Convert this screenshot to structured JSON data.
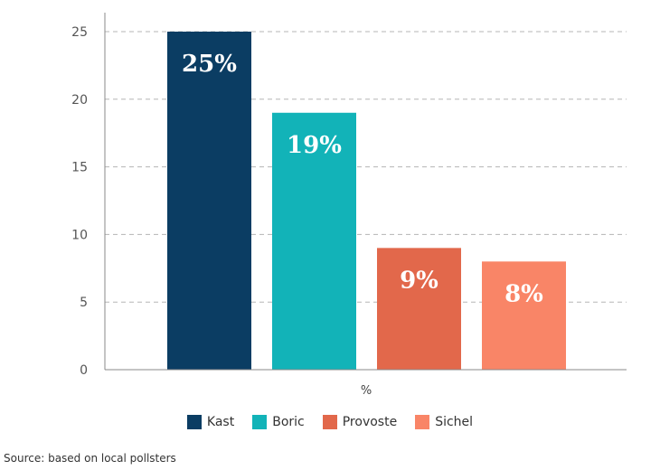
{
  "chart_data": {
    "type": "bar",
    "categories": [
      "Kast",
      "Boric",
      "Provoste",
      "Sichel"
    ],
    "values": [
      25,
      19,
      9,
      8
    ],
    "data_labels": [
      "25%",
      "19%",
      "9%",
      "8%"
    ],
    "colors": [
      "#0b3d63",
      "#12b3b8",
      "#e2684b",
      "#f98567"
    ],
    "xlabel": "%",
    "ylabel": "",
    "ylim": [
      0,
      25
    ],
    "yticks": [
      0,
      5,
      10,
      15,
      20,
      25
    ],
    "grid": true,
    "legend": "bottom"
  },
  "source": "Source: based on local pollsters"
}
